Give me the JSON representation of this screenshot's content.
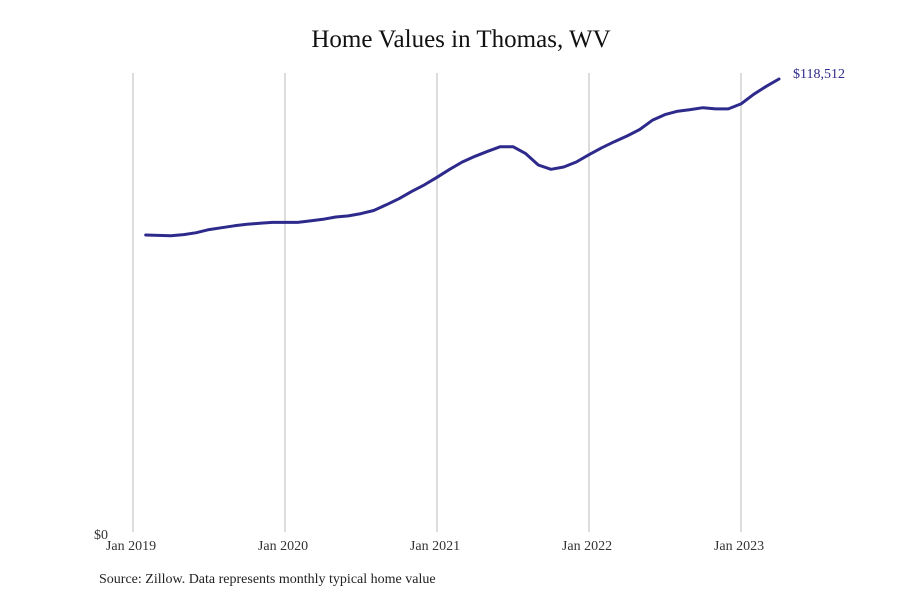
{
  "chart_data": {
    "type": "line",
    "title": "Home Values in Thomas, WV",
    "xlabel": "",
    "ylabel": "",
    "ylim": [
      0,
      118512
    ],
    "y_ticks": [
      "$0"
    ],
    "x_ticks": [
      "Jan 2019",
      "Jan 2020",
      "Jan 2021",
      "Jan 2022",
      "Jan 2023"
    ],
    "grid": "vertical gridlines at each January",
    "legend": "none",
    "end_label": "$118,512",
    "line_color": "#2e2a8c",
    "series": [
      {
        "name": "Typical home value",
        "x": [
          "2019-02",
          "2019-03",
          "2019-04",
          "2019-05",
          "2019-06",
          "2019-07",
          "2019-08",
          "2019-09",
          "2019-10",
          "2019-11",
          "2019-12",
          "2020-01",
          "2020-02",
          "2020-03",
          "2020-04",
          "2020-05",
          "2020-06",
          "2020-07",
          "2020-08",
          "2020-09",
          "2020-10",
          "2020-11",
          "2020-12",
          "2021-01",
          "2021-02",
          "2021-03",
          "2021-04",
          "2021-05",
          "2021-06",
          "2021-07",
          "2021-08",
          "2021-09",
          "2021-10",
          "2021-11",
          "2021-12",
          "2022-01",
          "2022-02",
          "2022-03",
          "2022-04",
          "2022-05",
          "2022-06",
          "2022-07",
          "2022-08",
          "2022-09",
          "2022-10",
          "2022-11",
          "2022-12",
          "2023-01",
          "2023-02",
          "2023-03",
          "2023-04"
        ],
        "values": [
          77700,
          77600,
          77500,
          77800,
          78300,
          79100,
          79600,
          80100,
          80500,
          80800,
          81000,
          81000,
          81000,
          81400,
          81800,
          82400,
          82700,
          83300,
          84100,
          85600,
          87200,
          89100,
          90800,
          92800,
          94900,
          96800,
          98300,
          99600,
          100800,
          100800,
          99000,
          96000,
          94900,
          95500,
          96800,
          98700,
          100500,
          102100,
          103600,
          105300,
          107700,
          109200,
          110100,
          110500,
          111000,
          110700,
          110700,
          112000,
          114500,
          116600,
          118512
        ]
      }
    ]
  },
  "footer": {
    "source": "Source: Zillow. Data represents monthly typical home value"
  }
}
